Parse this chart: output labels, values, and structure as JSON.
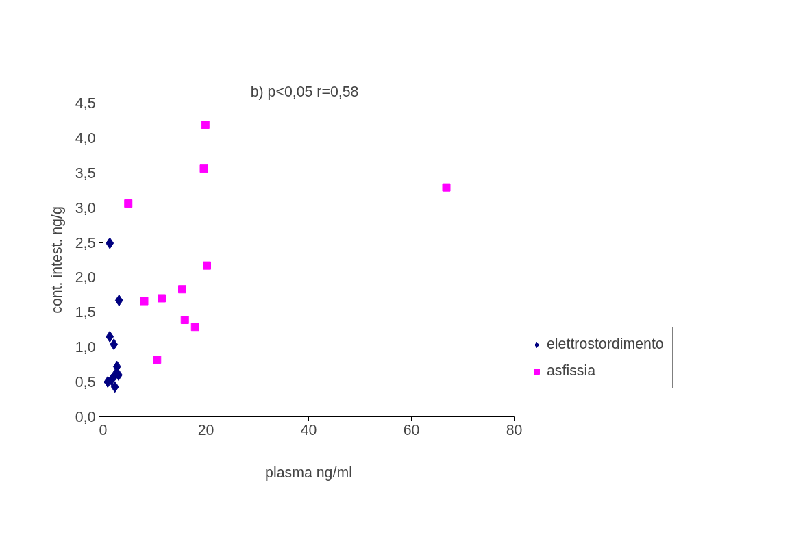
{
  "chart_data": {
    "type": "scatter",
    "title": "b) p<0,05   r=0,58",
    "xlabel": "plasma ng/ml",
    "ylabel": "cont. intest. ng/g",
    "xlim": [
      0,
      80
    ],
    "xticks": [
      0,
      20,
      40,
      60,
      80
    ],
    "ylim": [
      0,
      4.5
    ],
    "yticks": [
      {
        "value": 0,
        "label": "0,0"
      },
      {
        "value": 0.5,
        "label": "0,5"
      },
      {
        "value": 1,
        "label": "1,0"
      },
      {
        "value": 1.5,
        "label": "1,5"
      },
      {
        "value": 2,
        "label": "2,0"
      },
      {
        "value": 2.5,
        "label": "2,5"
      },
      {
        "value": 3,
        "label": "3,0"
      },
      {
        "value": 3.5,
        "label": "3,5"
      },
      {
        "value": 4,
        "label": "4,0"
      },
      {
        "value": 4.5,
        "label": "4,5"
      }
    ],
    "grid": false,
    "legend": "right",
    "series": [
      {
        "name": "elettrostordimento",
        "color": "#000080",
        "marker": "diamond",
        "x": [
          1.3,
          3.1,
          1.3,
          2.1,
          2.7,
          2.3,
          3.0,
          0.9,
          1.6,
          2.3
        ],
        "values": [
          2.49,
          1.67,
          1.15,
          1.04,
          0.72,
          0.6,
          0.6,
          0.5,
          0.53,
          0.43
        ]
      },
      {
        "name": "asfissia",
        "color": "#ff00ff",
        "marker": "square",
        "x": [
          19.9,
          19.6,
          4.9,
          66.8,
          20.2,
          15.4,
          11.4,
          8.0,
          15.9,
          17.9,
          10.5
        ],
        "values": [
          4.19,
          3.56,
          3.06,
          3.29,
          2.17,
          1.83,
          1.7,
          1.66,
          1.39,
          1.29,
          0.82
        ]
      }
    ]
  }
}
